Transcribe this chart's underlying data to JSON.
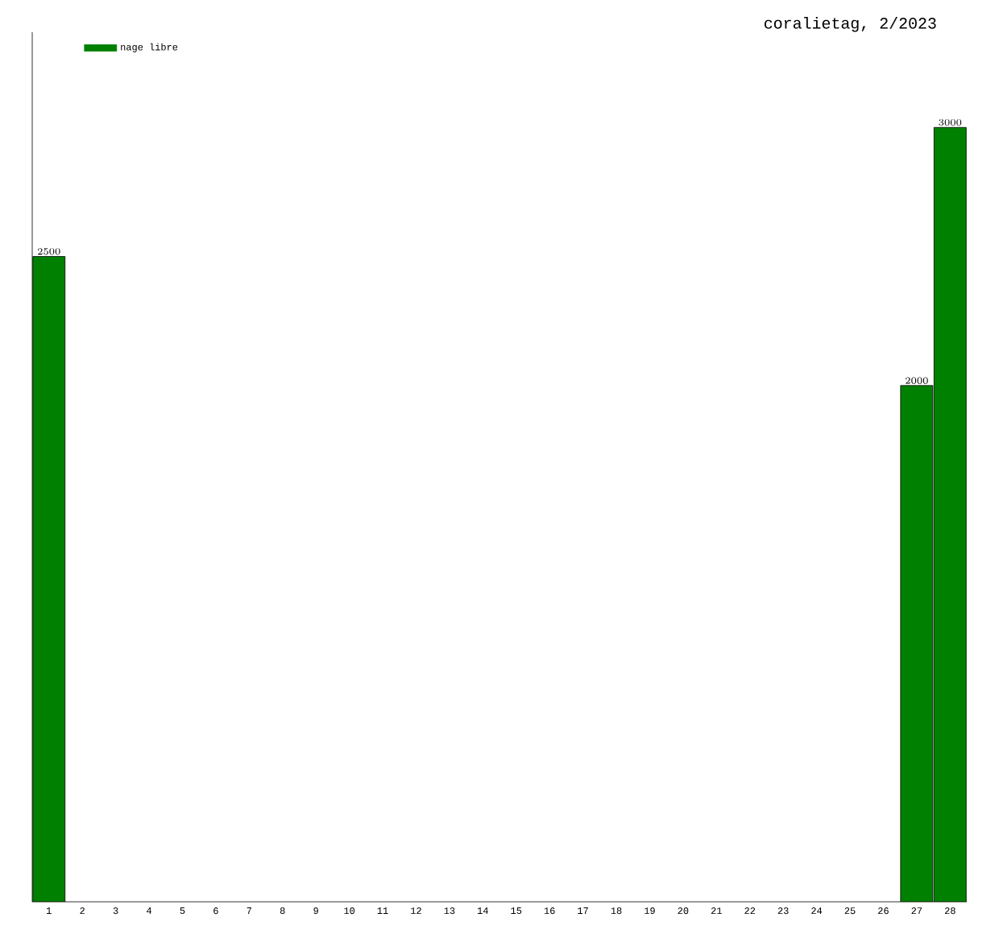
{
  "chart_data": {
    "type": "bar",
    "title": "coralietag, 2/2023",
    "categories": [
      "1",
      "2",
      "3",
      "4",
      "5",
      "6",
      "7",
      "8",
      "9",
      "10",
      "11",
      "12",
      "13",
      "14",
      "15",
      "16",
      "17",
      "18",
      "19",
      "20",
      "21",
      "22",
      "23",
      "24",
      "25",
      "26",
      "27",
      "28"
    ],
    "series": [
      {
        "name": "nage libre",
        "color": "#008000",
        "values": [
          2500,
          null,
          null,
          null,
          null,
          null,
          null,
          null,
          null,
          null,
          null,
          null,
          null,
          null,
          null,
          null,
          null,
          null,
          null,
          null,
          null,
          null,
          null,
          null,
          null,
          null,
          2000,
          3000
        ]
      }
    ],
    "data_labels": true,
    "legend": "top left"
  }
}
